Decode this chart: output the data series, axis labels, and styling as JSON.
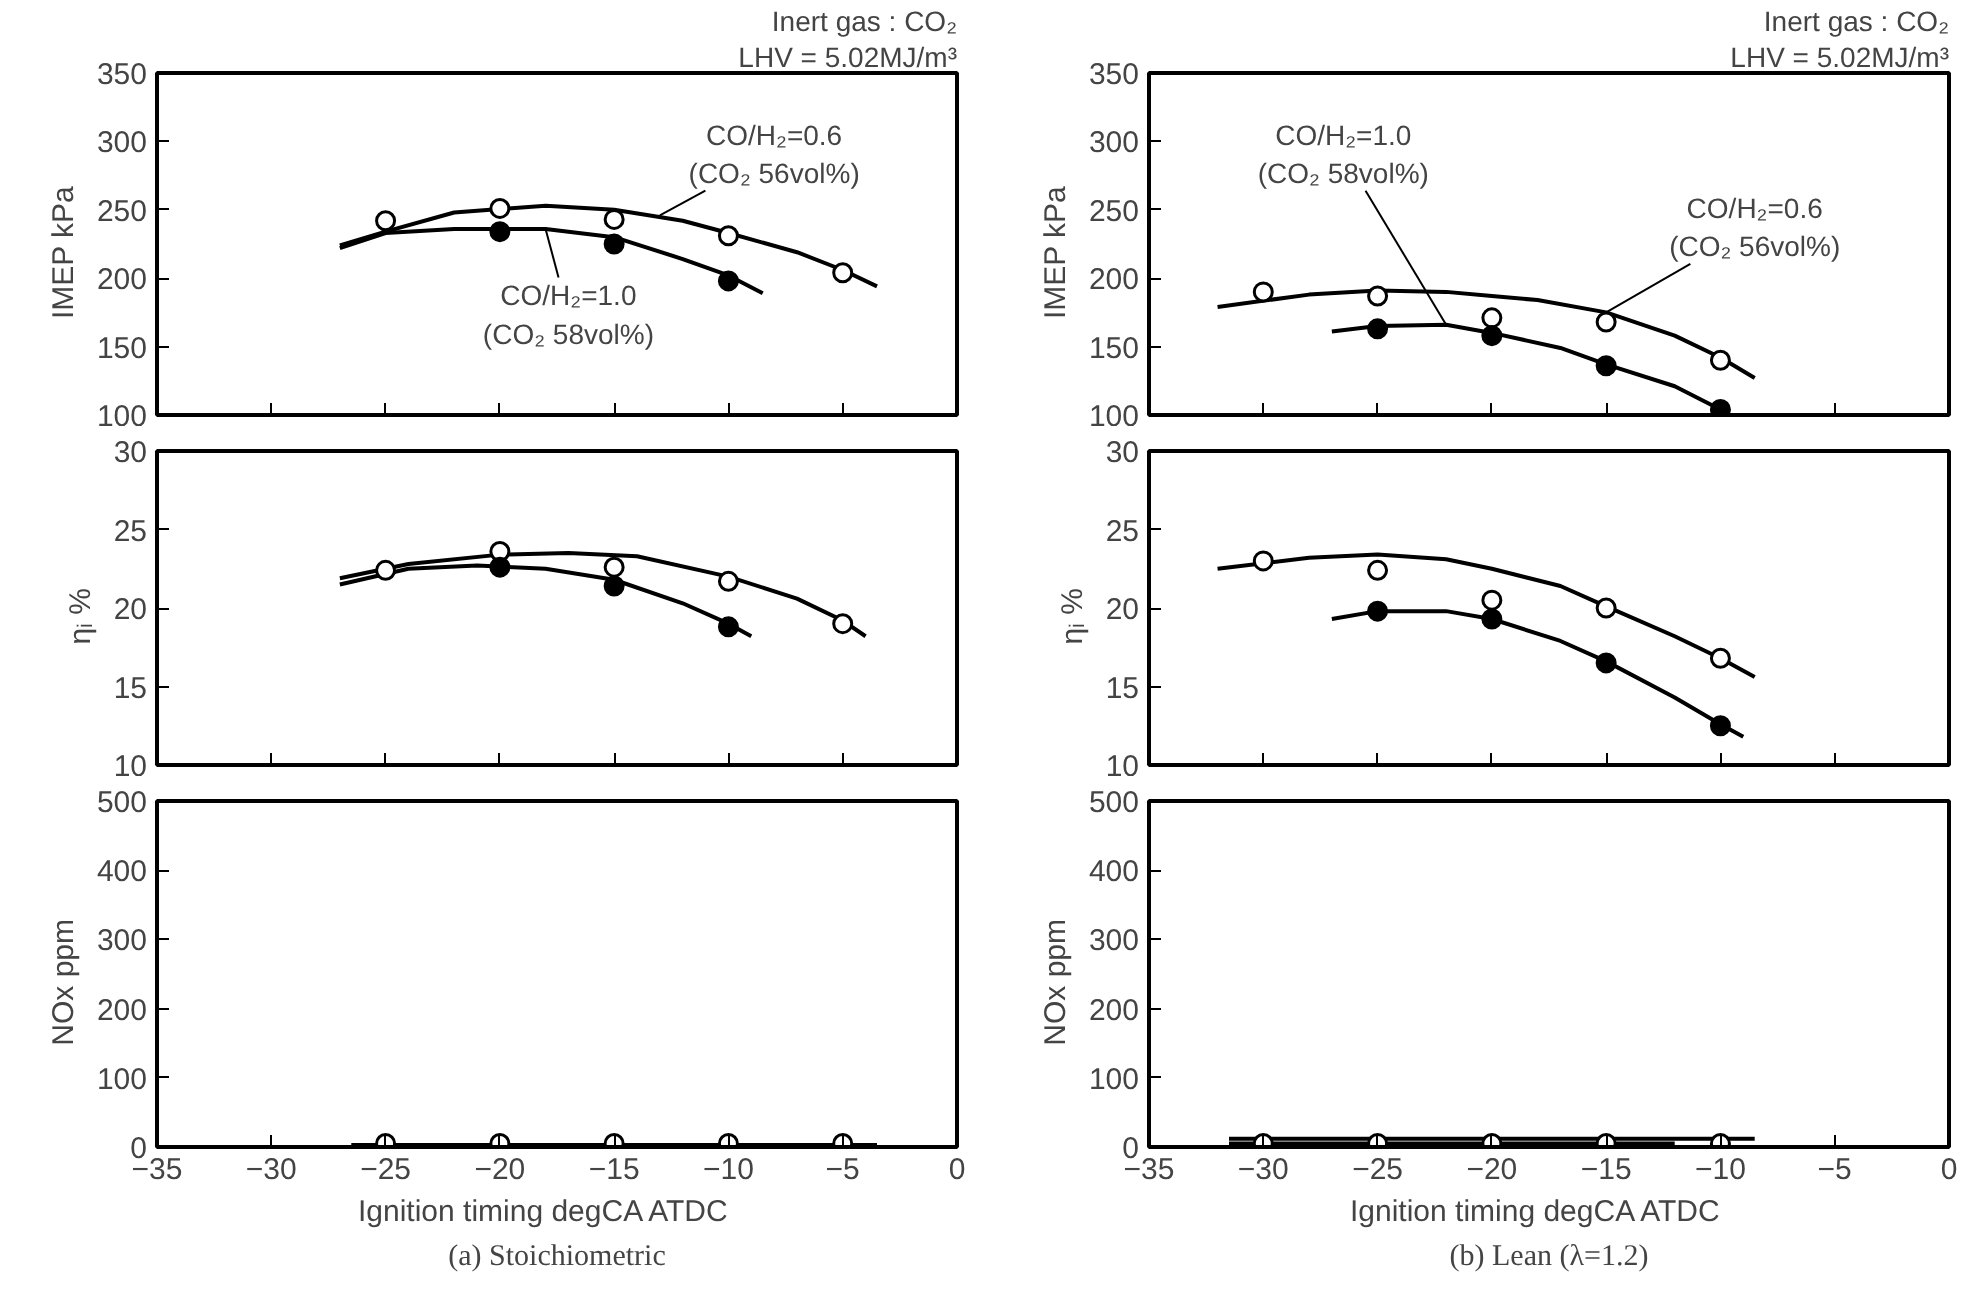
{
  "chart_data": [
    {
      "type": "scatter",
      "ylabel": "IMEP   kPa",
      "xlim": [
        -35,
        0
      ],
      "ylim": [
        100,
        350
      ],
      "xticks": [
        -35,
        -30,
        -25,
        -20,
        -15,
        -10,
        -5,
        0
      ],
      "yticks": [
        100,
        150,
        200,
        250,
        300,
        350
      ],
      "tick_labels": "y",
      "marker": "circle",
      "grid": false,
      "annotations": [
        "Inert gas : CO₂",
        "LHV = 5.02MJ/m³",
        {
          "text": "CO/H₂=0.6\n(CO₂ 56vol%)",
          "x": -13,
          "y": 246
        },
        {
          "text": "CO/H₂=1.0\n(CO₂ 58vol%)",
          "x": -18,
          "y": 236
        }
      ],
      "series": [
        {
          "type": "line",
          "marker": "none",
          "color": "#000000",
          "x": [
            -27,
            -25,
            -22,
            -18,
            -15,
            -12,
            -10,
            -7,
            -5,
            -3.5
          ],
          "values": [
            224,
            234,
            248,
            253,
            250,
            242,
            233,
            219,
            206,
            194
          ]
        },
        {
          "type": "line",
          "marker": "none",
          "color": "#000000",
          "x": [
            -27,
            -25,
            -22,
            -18,
            -15,
            -12,
            -10,
            -8.5
          ],
          "values": [
            222,
            233,
            236,
            236,
            230,
            214,
            202,
            189
          ]
        },
        {
          "color": "#ffffff",
          "x": [
            -25,
            -20,
            -15,
            -10,
            -5
          ],
          "values": [
            242,
            251,
            243,
            231,
            204
          ]
        },
        {
          "color": "#000000",
          "x": [
            -20,
            -15,
            -10
          ],
          "values": [
            234,
            225,
            198
          ]
        }
      ]
    },
    {
      "type": "scatter",
      "ylabel": "IMEP   kPa",
      "xlim": [
        -35,
        0
      ],
      "ylim": [
        100,
        350
      ],
      "xticks": [
        -35,
        -30,
        -25,
        -20,
        -15,
        -10,
        -5,
        0
      ],
      "yticks": [
        100,
        150,
        200,
        250,
        300,
        350
      ],
      "tick_labels": "y",
      "marker": "circle",
      "grid": false,
      "annotations": [
        "Inert gas : CO₂",
        "LHV = 5.02MJ/m³",
        {
          "text": "CO/H₂=1.0\n(CO₂ 58vol%)",
          "x": -22,
          "y": 166
        },
        {
          "text": "CO/H₂=0.6\n(CO₂ 56vol%)",
          "x": -15,
          "y": 175
        }
      ],
      "series": [
        {
          "type": "line",
          "marker": "none",
          "color": "#000000",
          "x": [
            -32,
            -28,
            -25,
            -22,
            -20,
            -18,
            -15,
            -12,
            -10,
            -8.5
          ],
          "values": [
            179,
            188,
            191,
            190,
            187,
            184,
            175,
            158,
            142,
            127
          ]
        },
        {
          "type": "line",
          "marker": "none",
          "color": "#000000",
          "x": [
            -27,
            -25,
            -22,
            -20,
            -17,
            -15,
            -12,
            -10
          ],
          "values": [
            161,
            165,
            166,
            160,
            149,
            137,
            121,
            104
          ]
        },
        {
          "color": "#ffffff",
          "x": [
            -30,
            -25,
            -20,
            -15,
            -10
          ],
          "values": [
            190,
            187,
            171,
            168,
            140
          ]
        },
        {
          "color": "#000000",
          "x": [
            -25,
            -20,
            -15,
            -10
          ],
          "values": [
            163,
            158,
            136,
            104
          ]
        }
      ]
    },
    {
      "type": "scatter",
      "ylabel": "ηᵢ   %",
      "xlim": [
        -35,
        0
      ],
      "ylim": [
        10,
        30
      ],
      "xticks": [
        -35,
        -30,
        -25,
        -20,
        -15,
        -10,
        -5,
        0
      ],
      "yticks": [
        10,
        15,
        20,
        25,
        30
      ],
      "tick_labels": "y",
      "marker": "circle",
      "grid": false,
      "series": [
        {
          "type": "line",
          "marker": "none",
          "color": "#000000",
          "x": [
            -27,
            -24,
            -20,
            -17,
            -14,
            -10,
            -7,
            -5,
            -4
          ],
          "values": [
            21.9,
            22.8,
            23.4,
            23.5,
            23.3,
            22.0,
            20.6,
            19.2,
            18.2
          ]
        },
        {
          "type": "line",
          "marker": "none",
          "color": "#000000",
          "x": [
            -27,
            -24,
            -21,
            -18,
            -15,
            -12,
            -10,
            -9
          ],
          "values": [
            21.5,
            22.5,
            22.7,
            22.5,
            21.8,
            20.3,
            19.0,
            18.2
          ]
        },
        {
          "color": "#ffffff",
          "x": [
            -25,
            -20,
            -15,
            -10,
            -5
          ],
          "values": [
            22.4,
            23.6,
            22.6,
            21.7,
            19.0
          ]
        },
        {
          "color": "#000000",
          "x": [
            -20,
            -15,
            -10
          ],
          "values": [
            22.6,
            21.4,
            18.8
          ]
        }
      ]
    },
    {
      "type": "scatter",
      "ylabel": "ηᵢ   %",
      "xlim": [
        -35,
        0
      ],
      "ylim": [
        10,
        30
      ],
      "xticks": [
        -35,
        -30,
        -25,
        -20,
        -15,
        -10,
        -5,
        0
      ],
      "yticks": [
        10,
        15,
        20,
        25,
        30
      ],
      "tick_labels": "y",
      "marker": "circle",
      "grid": false,
      "series": [
        {
          "type": "line",
          "marker": "none",
          "color": "#000000",
          "x": [
            -32,
            -28,
            -25,
            -22,
            -20,
            -17,
            -15,
            -12,
            -10,
            -8.5
          ],
          "values": [
            22.5,
            23.2,
            23.4,
            23.1,
            22.5,
            21.4,
            20.1,
            18.2,
            16.8,
            15.6
          ]
        },
        {
          "type": "line",
          "marker": "none",
          "color": "#000000",
          "x": [
            -27,
            -25,
            -22,
            -20,
            -17,
            -15,
            -12,
            -10,
            -9
          ],
          "values": [
            19.3,
            19.8,
            19.8,
            19.3,
            17.9,
            16.6,
            14.3,
            12.6,
            11.8
          ]
        },
        {
          "color": "#ffffff",
          "x": [
            -30,
            -25,
            -20,
            -15,
            -10
          ],
          "values": [
            23.0,
            22.4,
            20.5,
            20.0,
            16.8
          ]
        },
        {
          "color": "#000000",
          "x": [
            -25,
            -20,
            -15,
            -10
          ],
          "values": [
            19.8,
            19.3,
            16.5,
            12.5
          ]
        }
      ]
    },
    {
      "type": "scatter",
      "ylabel": "NOx   ppm",
      "xlabel": "Ignition timing    degCA ATDC",
      "xlim": [
        -35,
        0
      ],
      "ylim": [
        0,
        500
      ],
      "xticks": [
        -35,
        -30,
        -25,
        -20,
        -15,
        -10,
        -5,
        0
      ],
      "yticks": [
        0,
        100,
        200,
        300,
        400,
        500
      ],
      "marker": "circle",
      "grid": false,
      "annotations": [
        "(a) Stoichiometric"
      ],
      "series": [
        {
          "type": "line",
          "marker": "none",
          "color": "#000000",
          "x": [
            -26.5,
            -3.5
          ],
          "values": [
            3,
            3
          ]
        },
        {
          "color": "#ffffff",
          "x": [
            -25,
            -20,
            -15,
            -10,
            -5
          ],
          "values": [
            5,
            5,
            5,
            5,
            5
          ]
        }
      ]
    },
    {
      "type": "scatter",
      "ylabel": "NOx   ppm",
      "xlabel": "Ignition timing    degCA ATDC",
      "xlim": [
        -35,
        0
      ],
      "ylim": [
        0,
        500
      ],
      "xticks": [
        -35,
        -30,
        -25,
        -20,
        -15,
        -10,
        -5,
        0
      ],
      "yticks": [
        0,
        100,
        200,
        300,
        400,
        500
      ],
      "marker": "circle",
      "grid": false,
      "annotations": [
        "(b) Lean (λ=1.2)"
      ],
      "series": [
        {
          "type": "line",
          "marker": "none",
          "color": "#000000",
          "x": [
            -31.5,
            -8.5
          ],
          "values": [
            12,
            12
          ]
        },
        {
          "type": "line",
          "marker": "none",
          "color": "#000000",
          "x": [
            -31.5,
            -12
          ],
          "values": [
            5,
            5
          ]
        },
        {
          "color": "#ffffff",
          "x": [
            -30,
            -25,
            -20,
            -15,
            -10
          ],
          "values": [
            5,
            5,
            5,
            5,
            5
          ]
        }
      ]
    }
  ]
}
